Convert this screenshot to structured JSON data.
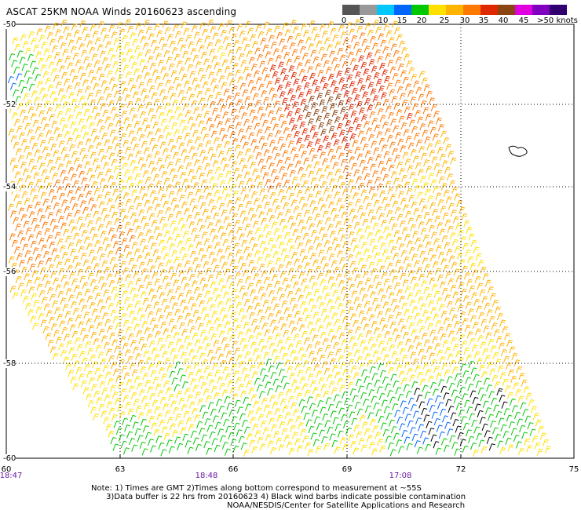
{
  "title": "ASCAT 25KM NOAA Winds 20160623 ascending",
  "colorbar": {
    "colors": [
      "#555555",
      "#999999",
      "#00c8ff",
      "#0064ff",
      "#00c800",
      "#ffe000",
      "#ffb400",
      "#ff7800",
      "#e02800",
      "#8b4513",
      "#e000e0",
      "#8000c0",
      "#300070"
    ],
    "labels": [
      "0",
      "5",
      "10",
      "15",
      "20",
      "25",
      "30",
      "35",
      "40",
      "45",
      ">50 knots"
    ]
  },
  "lat_labels": [
    "-50",
    "-52",
    "-54",
    "-56",
    "-58",
    "-60"
  ],
  "lon_labels": [
    "60",
    "63",
    "66",
    "69",
    "72",
    "75"
  ],
  "time_labels": [
    "18:47",
    "18:48",
    "17:08"
  ],
  "notes": [
    "Note: 1) Times are GMT 2)Times along bottom correspond to measurement at ~55S",
    "      3)Data buffer is 22 hrs from 20160623 4) Black wind barbs indicate possible contamination"
  ],
  "credit": "NOAA/NESDIS/Center for Satellite Applications and Research",
  "map": {
    "lon_range": [
      60,
      75
    ],
    "lat_range": [
      -60,
      -50
    ],
    "features": [
      "Heard Island"
    ],
    "wind_speed_regions_knots": [
      {
        "region": "northwest edge near 60E 50-52S",
        "speed": 15
      },
      {
        "region": "west of 63E 51-55S",
        "speed": 30
      },
      {
        "region": "north-central 64-70E 50-55S",
        "speed": 40
      },
      {
        "region": "central swath 62-72E 55-58S",
        "speed": 27
      },
      {
        "region": "south 60-69E 58-60S",
        "speed": 22
      },
      {
        "region": "southeast 69-74E 58-60S",
        "speed": 15
      }
    ],
    "contaminated_barbs": "southeast near 71-73E 58-60S"
  }
}
